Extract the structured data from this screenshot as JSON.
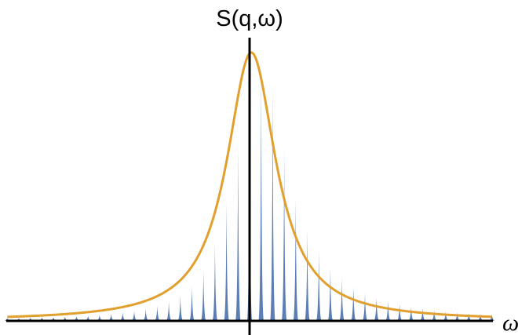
{
  "chart_data": {
    "type": "line",
    "ylabel": "S(q,ω)",
    "xlabel": "ω",
    "legend": "none",
    "grid": false,
    "x_range": [
      -21,
      21
    ],
    "y_range": [
      0,
      1.0
    ],
    "series": [
      {
        "style": "spikes",
        "color": "#5b7fb5",
        "x": [
          -21,
          -20,
          -19,
          -18,
          -17,
          -16,
          -15,
          -14,
          -13,
          -12,
          -11,
          -10,
          -9,
          -8,
          -7,
          -6,
          -5,
          -4,
          -3,
          -2,
          -1,
          0,
          1,
          2,
          3,
          4,
          5,
          6,
          7,
          8,
          9,
          10,
          11,
          12,
          13,
          14,
          15,
          16,
          17,
          18,
          19,
          20,
          21
        ],
        "y": [
          0.009,
          0.01,
          0.011,
          0.012,
          0.013,
          0.015,
          0.017,
          0.019,
          0.022,
          0.026,
          0.031,
          0.037,
          0.045,
          0.056,
          0.072,
          0.095,
          0.13,
          0.19,
          0.29,
          0.45,
          0.66,
          0.84,
          0.94,
          0.88,
          0.64,
          0.46,
          0.34,
          0.26,
          0.2,
          0.16,
          0.13,
          0.105,
          0.088,
          0.074,
          0.063,
          0.054,
          0.047,
          0.041,
          0.036,
          0.032,
          0.029,
          0.026,
          0.023
        ]
      },
      {
        "style": "line",
        "color": "#e1a02e",
        "center": 0.15,
        "gamma": 2.6,
        "peak": 1.0
      }
    ]
  },
  "colors": {
    "axis": "#000000",
    "spikes": "#5b7fb5",
    "envelope": "#e1a02e"
  }
}
